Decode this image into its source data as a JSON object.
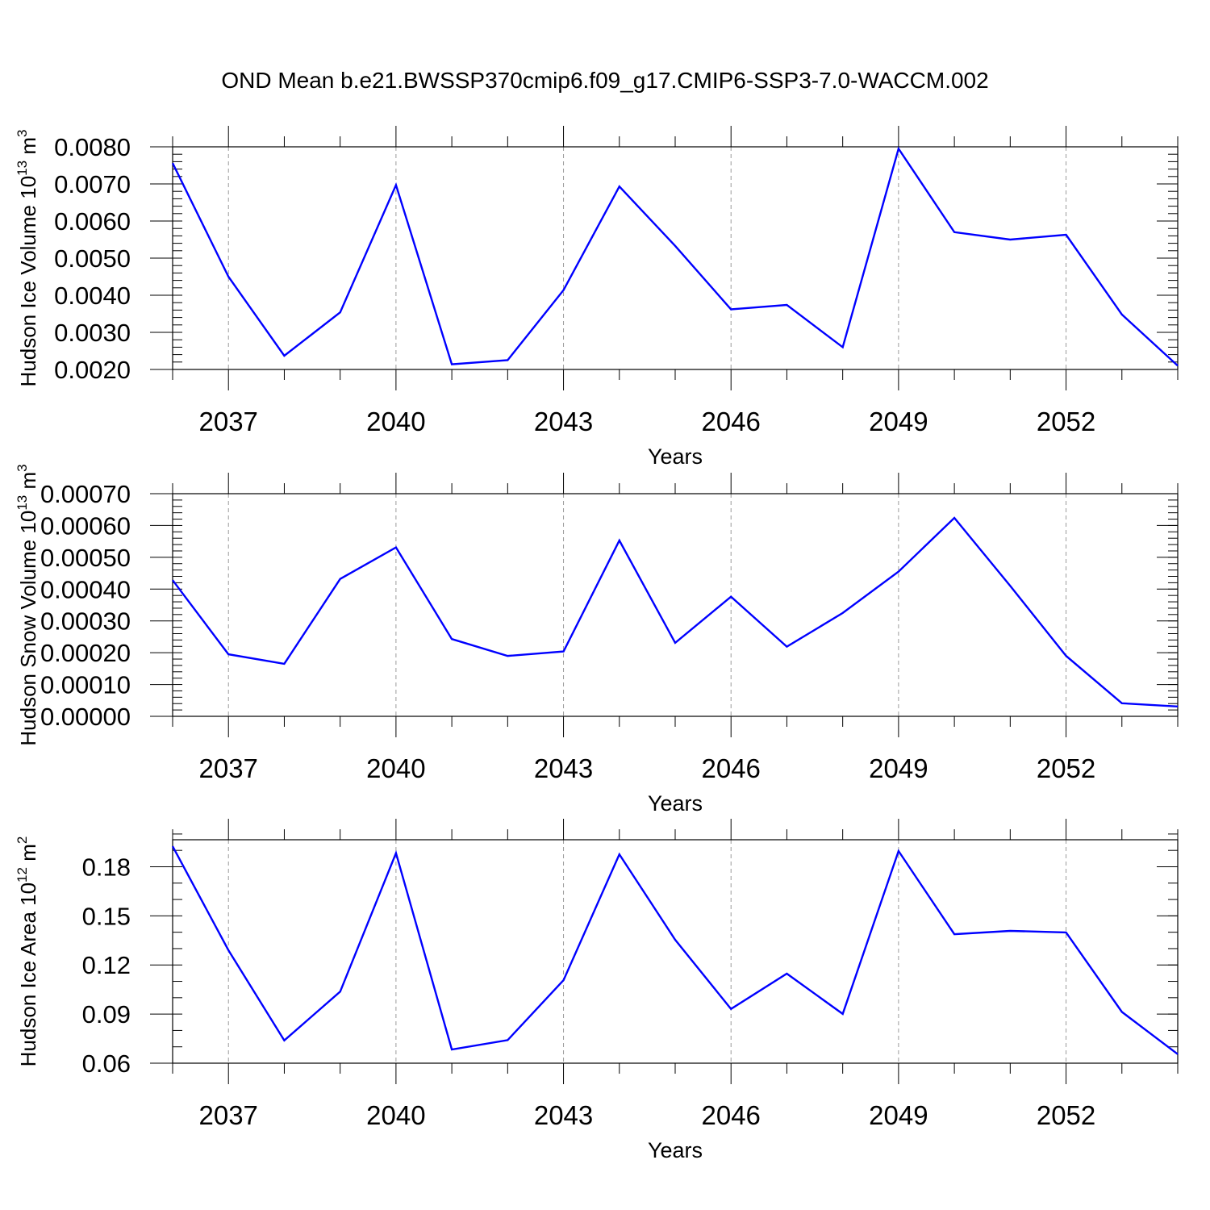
{
  "figure": {
    "title": "OND Mean b.e21.BWSSP370cmip6.f09_g17.CMIP6-SSP3-7.0-WACCM.002",
    "line_color": "#0000ff"
  },
  "chart_data": [
    {
      "type": "line",
      "xlabel": "Years",
      "ylabel": {
        "text": "Hudson Ice Volume 10",
        "exp": "13",
        "unit": " m",
        "unit_exp": "3"
      },
      "xlim": [
        2036,
        2054
      ],
      "ylim": [
        0.002,
        0.008
      ],
      "xticks": [
        2037,
        2040,
        2043,
        2046,
        2049,
        2052
      ],
      "yticks": [
        0.002,
        0.003,
        0.004,
        0.005,
        0.006,
        0.007,
        0.008
      ],
      "ytick_labels": [
        "0.0020",
        "0.0030",
        "0.0040",
        "0.0050",
        "0.0060",
        "0.0070",
        "0.0080"
      ],
      "y_minor_step": 0.0002,
      "grid": "dashed vertical at x ticks",
      "x": [
        2036,
        2037,
        2038,
        2039,
        2040,
        2041,
        2042,
        2043,
        2044,
        2045,
        2046,
        2047,
        2048,
        2049,
        2050,
        2051,
        2052,
        2053,
        2054
      ],
      "y": [
        0.00756,
        0.0045,
        0.00237,
        0.00354,
        0.00697,
        0.00214,
        0.00225,
        0.00414,
        0.00693,
        0.00533,
        0.00362,
        0.00374,
        0.0026,
        0.00795,
        0.0057,
        0.0055,
        0.00563,
        0.00348,
        0.0021
      ]
    },
    {
      "type": "line",
      "xlabel": "Years",
      "ylabel": {
        "text": "Hudson Snow Volume 10",
        "exp": "13",
        "unit": " m",
        "unit_exp": "3"
      },
      "xlim": [
        2036,
        2054
      ],
      "ylim": [
        0.0,
        0.0007
      ],
      "xticks": [
        2037,
        2040,
        2043,
        2046,
        2049,
        2052
      ],
      "yticks": [
        0.0,
        0.0001,
        0.0002,
        0.0003,
        0.0004,
        0.0005,
        0.0006,
        0.0007
      ],
      "ytick_labels": [
        "0.00000",
        "0.00010",
        "0.00020",
        "0.00030",
        "0.00040",
        "0.00050",
        "0.00060",
        "0.00070"
      ],
      "y_minor_step": 2e-05,
      "grid": "dashed vertical at x ticks",
      "x": [
        2036,
        2037,
        2038,
        2039,
        2040,
        2041,
        2042,
        2043,
        2044,
        2045,
        2046,
        2047,
        2048,
        2049,
        2050,
        2051,
        2052,
        2053,
        2054
      ],
      "y": [
        0.000428,
        0.000195,
        0.000165,
        0.000432,
        0.000531,
        0.000243,
        0.00019,
        0.000204,
        0.000553,
        0.000231,
        0.000376,
        0.000219,
        0.000325,
        0.000455,
        0.000624,
        0.00041,
        0.00019,
        4.1e-05,
        3.1e-05
      ]
    },
    {
      "type": "line",
      "xlabel": "Years",
      "ylabel": {
        "text": "Hudson Ice Area 10",
        "exp": "12",
        "unit": " m",
        "unit_exp": "2"
      },
      "xlim": [
        2036,
        2054
      ],
      "ylim": [
        0.06,
        0.1965
      ],
      "xticks": [
        2037,
        2040,
        2043,
        2046,
        2049,
        2052
      ],
      "yticks": [
        0.06,
        0.09,
        0.12,
        0.15,
        0.18
      ],
      "ytick_labels": [
        "0.06",
        "0.09",
        "0.12",
        "0.15",
        "0.18"
      ],
      "y_minor_step": 0.01,
      "grid": "dashed vertical at x ticks",
      "x": [
        2036,
        2037,
        2038,
        2039,
        2040,
        2041,
        2042,
        2043,
        2044,
        2045,
        2046,
        2047,
        2048,
        2049,
        2050,
        2051,
        2052,
        2053,
        2054
      ],
      "y": [
        0.1925,
        0.129,
        0.0739,
        0.1037,
        0.1883,
        0.0684,
        0.0741,
        0.1107,
        0.1876,
        0.1354,
        0.0931,
        0.1147,
        0.0901,
        0.1896,
        0.1388,
        0.1408,
        0.1399,
        0.0913,
        0.0655
      ]
    }
  ]
}
